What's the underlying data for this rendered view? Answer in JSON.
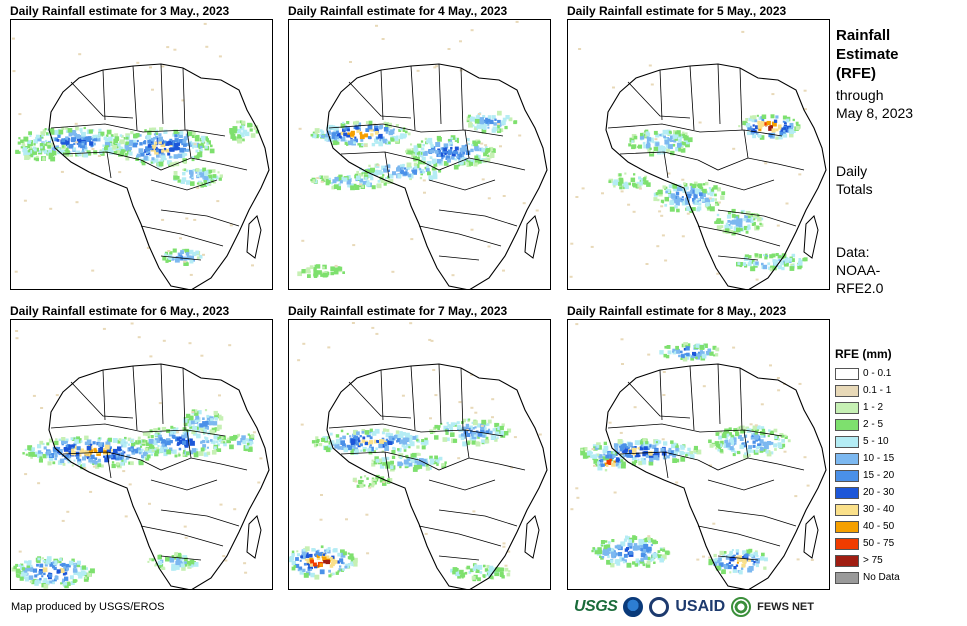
{
  "panels": [
    {
      "title": "Daily Rainfall estimate for 3 May., 2023"
    },
    {
      "title": "Daily Rainfall estimate for 4 May., 2023"
    },
    {
      "title": "Daily Rainfall estimate for 5 May., 2023"
    },
    {
      "title": "Daily Rainfall estimate for 6 May., 2023"
    },
    {
      "title": "Daily Rainfall estimate for 7 May., 2023"
    },
    {
      "title": "Daily Rainfall estimate for 8 May., 2023"
    }
  ],
  "side": {
    "title_lines": [
      "Rainfall",
      "Estimate",
      "(RFE)"
    ],
    "through_lines": [
      "through",
      "May 8, 2023"
    ],
    "daily_lines": [
      "Daily",
      "Totals"
    ],
    "data_lines": [
      "Data:",
      "NOAA-",
      "RFE2.0"
    ]
  },
  "legend": {
    "title": "RFE (mm)",
    "items": [
      {
        "label": "0 - 0.1",
        "color": "#ffffff"
      },
      {
        "label": "0.1 - 1",
        "color": "#e8d9b8"
      },
      {
        "label": "1 - 2",
        "color": "#c6f0b4"
      },
      {
        "label": "2 - 5",
        "color": "#7ee06e"
      },
      {
        "label": "5 - 10",
        "color": "#b4ecf4"
      },
      {
        "label": "10 - 15",
        "color": "#7cb8f0"
      },
      {
        "label": "15 - 20",
        "color": "#4a90e8"
      },
      {
        "label": "20 - 30",
        "color": "#1c56d8"
      },
      {
        "label": "30 - 40",
        "color": "#fae08a"
      },
      {
        "label": "40 - 50",
        "color": "#f5a000"
      },
      {
        "label": "50 - 75",
        "color": "#f03c00"
      },
      {
        "label": "> 75",
        "color": "#a01e12"
      },
      {
        "label": "No Data",
        "color": "#9a9a9a"
      }
    ]
  },
  "footer": {
    "credit": "Map produced by USGS/EROS",
    "logos": {
      "usgs": "USGS",
      "noaa": "noaa-logo",
      "usaid": "USAID",
      "fews": "FEWS NET"
    }
  }
}
